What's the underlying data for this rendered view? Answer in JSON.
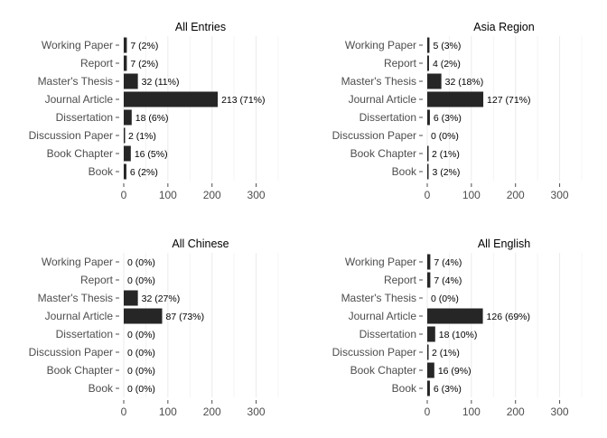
{
  "chart_data": [
    {
      "type": "bar",
      "orientation": "horizontal",
      "title": "All Entries",
      "categories": [
        "Working Paper",
        "Report",
        "Master's Thesis",
        "Journal Article",
        "Dissertation",
        "Discussion Paper",
        "Book Chapter",
        "Book"
      ],
      "values": [
        7,
        7,
        32,
        213,
        18,
        2,
        16,
        6
      ],
      "labels": [
        "7 (2%)",
        "7 (2%)",
        "32 (11%)",
        "213 (71%)",
        "18 (6%)",
        "2 (1%)",
        "16 (5%)",
        "6 (2%)"
      ],
      "xticks": [
        0,
        100,
        200,
        300
      ],
      "xlim": [
        0,
        350
      ],
      "grid": true
    },
    {
      "type": "bar",
      "orientation": "horizontal",
      "title": "Asia Region",
      "categories": [
        "Working Paper",
        "Report",
        "Master's Thesis",
        "Journal Article",
        "Dissertation",
        "Discussion Paper",
        "Book Chapter",
        "Book"
      ],
      "values": [
        5,
        4,
        32,
        127,
        6,
        0,
        2,
        3
      ],
      "labels": [
        "5 (3%)",
        "4 (2%)",
        "32 (18%)",
        "127 (71%)",
        "6 (3%)",
        "0 (0%)",
        "2 (1%)",
        "3 (2%)"
      ],
      "xticks": [
        0,
        100,
        200,
        300
      ],
      "xlim": [
        0,
        350
      ],
      "grid": true
    },
    {
      "type": "bar",
      "orientation": "horizontal",
      "title": "All Chinese",
      "categories": [
        "Working Paper",
        "Report",
        "Master's Thesis",
        "Journal Article",
        "Dissertation",
        "Discussion Paper",
        "Book Chapter",
        "Book"
      ],
      "values": [
        0,
        0,
        32,
        87,
        0,
        0,
        0,
        0
      ],
      "labels": [
        "0 (0%)",
        "0 (0%)",
        "32 (27%)",
        "87 (73%)",
        "0 (0%)",
        "0 (0%)",
        "0 (0%)",
        "0 (0%)"
      ],
      "xticks": [
        0,
        100,
        200,
        300
      ],
      "xlim": [
        0,
        350
      ],
      "grid": true
    },
    {
      "type": "bar",
      "orientation": "horizontal",
      "title": "All English",
      "categories": [
        "Working Paper",
        "Report",
        "Master's Thesis",
        "Journal Article",
        "Dissertation",
        "Discussion Paper",
        "Book Chapter",
        "Book"
      ],
      "values": [
        7,
        7,
        0,
        126,
        18,
        2,
        16,
        6
      ],
      "labels": [
        "7 (4%)",
        "7 (4%)",
        "0 (0%)",
        "126 (69%)",
        "18 (10%)",
        "2 (1%)",
        "16 (9%)",
        "6 (3%)"
      ],
      "xticks": [
        0,
        100,
        200,
        300
      ],
      "xlim": [
        0,
        350
      ],
      "grid": true
    }
  ],
  "colors": {
    "bar": "#262626",
    "grid_major": "#ebebeb",
    "grid_minor": "#f4f4f4",
    "axis_text": "#4d4d4d",
    "label_text": "#000000"
  }
}
